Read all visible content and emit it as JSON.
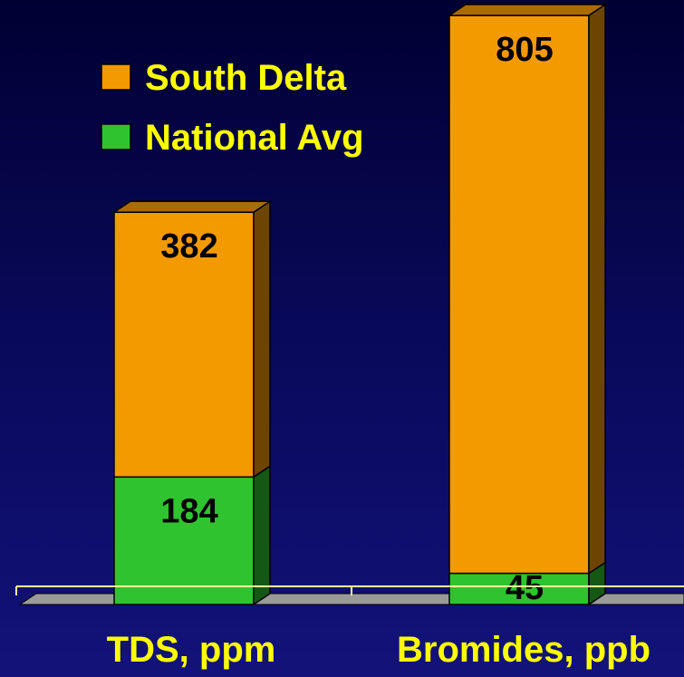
{
  "chart_data": {
    "type": "bar",
    "stacked": true,
    "categories": [
      "TDS, ppm",
      "Bromides, ppb"
    ],
    "series": [
      {
        "name": "National Avg",
        "values": [
          184,
          45
        ],
        "color": "#2fc42f"
      },
      {
        "name": "South Delta",
        "values": [
          382,
          805
        ],
        "color": "#f39a00"
      }
    ],
    "title": "",
    "xlabel": "",
    "ylabel": "",
    "legend_position": "top-left",
    "grid": false,
    "three_d": true,
    "colors": {
      "background": "#0a0a5e",
      "label": "#ffff00",
      "value_label": "#000000",
      "axis": "#ffff99",
      "floor": "#9a9a9a"
    }
  }
}
